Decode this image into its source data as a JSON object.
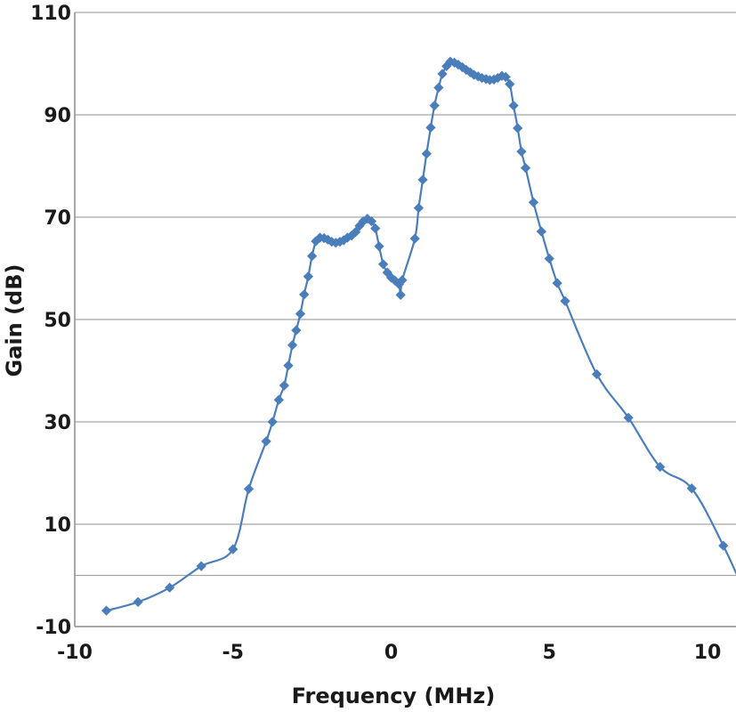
{
  "chart_data": {
    "type": "scatter",
    "xlabel": "Frequency (MHz)",
    "ylabel": "Gain (dB)",
    "xlim": [
      -10,
      10
    ],
    "ylim": [
      -10,
      110
    ],
    "x_ticks": [
      -10,
      -5,
      0,
      5,
      10
    ],
    "y_ticks": [
      -10,
      10,
      30,
      50,
      70,
      90,
      110
    ],
    "grid_y": [
      0,
      10,
      30,
      50,
      70,
      90,
      110
    ],
    "grid": true,
    "colors": {
      "series": "#4a7ebb",
      "grid": "#a6a6a6",
      "text": "#1a1a1a"
    },
    "series": [
      {
        "marker": "diamond",
        "smooth": true,
        "points": [
          [
            -9.0,
            -6.9
          ],
          [
            -8.0,
            -5.2
          ],
          [
            -7.0,
            -2.4
          ],
          [
            -6.0,
            1.8
          ],
          [
            -5.0,
            5.1
          ],
          [
            -4.5,
            16.9
          ],
          [
            -3.95,
            26.2
          ],
          [
            -3.75,
            30.0
          ],
          [
            -3.55,
            34.3
          ],
          [
            -3.38,
            37.1
          ],
          [
            -3.25,
            41.0
          ],
          [
            -3.12,
            45.0
          ],
          [
            -3.0,
            47.9
          ],
          [
            -2.87,
            51.1
          ],
          [
            -2.75,
            54.9
          ],
          [
            -2.62,
            58.4
          ],
          [
            -2.5,
            62.4
          ],
          [
            -2.38,
            65.3
          ],
          [
            -2.25,
            66.0
          ],
          [
            -2.12,
            65.9
          ],
          [
            -2.0,
            65.6
          ],
          [
            -1.88,
            65.2
          ],
          [
            -1.75,
            65.0
          ],
          [
            -1.62,
            65.2
          ],
          [
            -1.5,
            65.5
          ],
          [
            -1.38,
            66.0
          ],
          [
            -1.25,
            66.4
          ],
          [
            -1.12,
            67.1
          ],
          [
            -1.0,
            68.3
          ],
          [
            -0.88,
            69.2
          ],
          [
            -0.75,
            69.7
          ],
          [
            -0.62,
            69.2
          ],
          [
            -0.5,
            67.8
          ],
          [
            -0.38,
            64.3
          ],
          [
            -0.25,
            60.8
          ],
          [
            -0.12,
            59.2
          ],
          [
            0.0,
            58.2
          ],
          [
            0.12,
            57.6
          ],
          [
            0.25,
            56.9
          ],
          [
            0.3,
            54.8
          ],
          [
            0.35,
            57.7
          ],
          [
            0.75,
            65.8
          ],
          [
            0.87,
            71.8
          ],
          [
            1.0,
            77.3
          ],
          [
            1.12,
            82.4
          ],
          [
            1.25,
            87.5
          ],
          [
            1.37,
            91.8
          ],
          [
            1.5,
            95.3
          ],
          [
            1.62,
            98.0
          ],
          [
            1.75,
            99.5
          ],
          [
            1.87,
            100.4
          ],
          [
            2.0,
            100.2
          ],
          [
            2.12,
            99.8
          ],
          [
            2.25,
            99.3
          ],
          [
            2.37,
            98.8
          ],
          [
            2.5,
            98.3
          ],
          [
            2.62,
            97.8
          ],
          [
            2.75,
            97.5
          ],
          [
            2.87,
            97.2
          ],
          [
            3.0,
            97.0
          ],
          [
            3.12,
            96.8
          ],
          [
            3.25,
            96.9
          ],
          [
            3.37,
            97.2
          ],
          [
            3.5,
            97.6
          ],
          [
            3.62,
            97.4
          ],
          [
            3.75,
            96.0
          ],
          [
            3.87,
            91.8
          ],
          [
            4.0,
            87.4
          ],
          [
            4.12,
            82.8
          ],
          [
            4.25,
            79.6
          ],
          [
            4.5,
            72.9
          ],
          [
            4.75,
            67.2
          ],
          [
            5.0,
            61.9
          ],
          [
            5.25,
            57.1
          ],
          [
            5.5,
            53.6
          ],
          [
            6.5,
            39.3
          ],
          [
            7.5,
            30.8
          ],
          [
            8.5,
            21.2
          ],
          [
            9.5,
            17.0
          ],
          [
            10.5,
            5.8
          ],
          [
            11.5,
            -7.8
          ]
        ]
      }
    ]
  }
}
